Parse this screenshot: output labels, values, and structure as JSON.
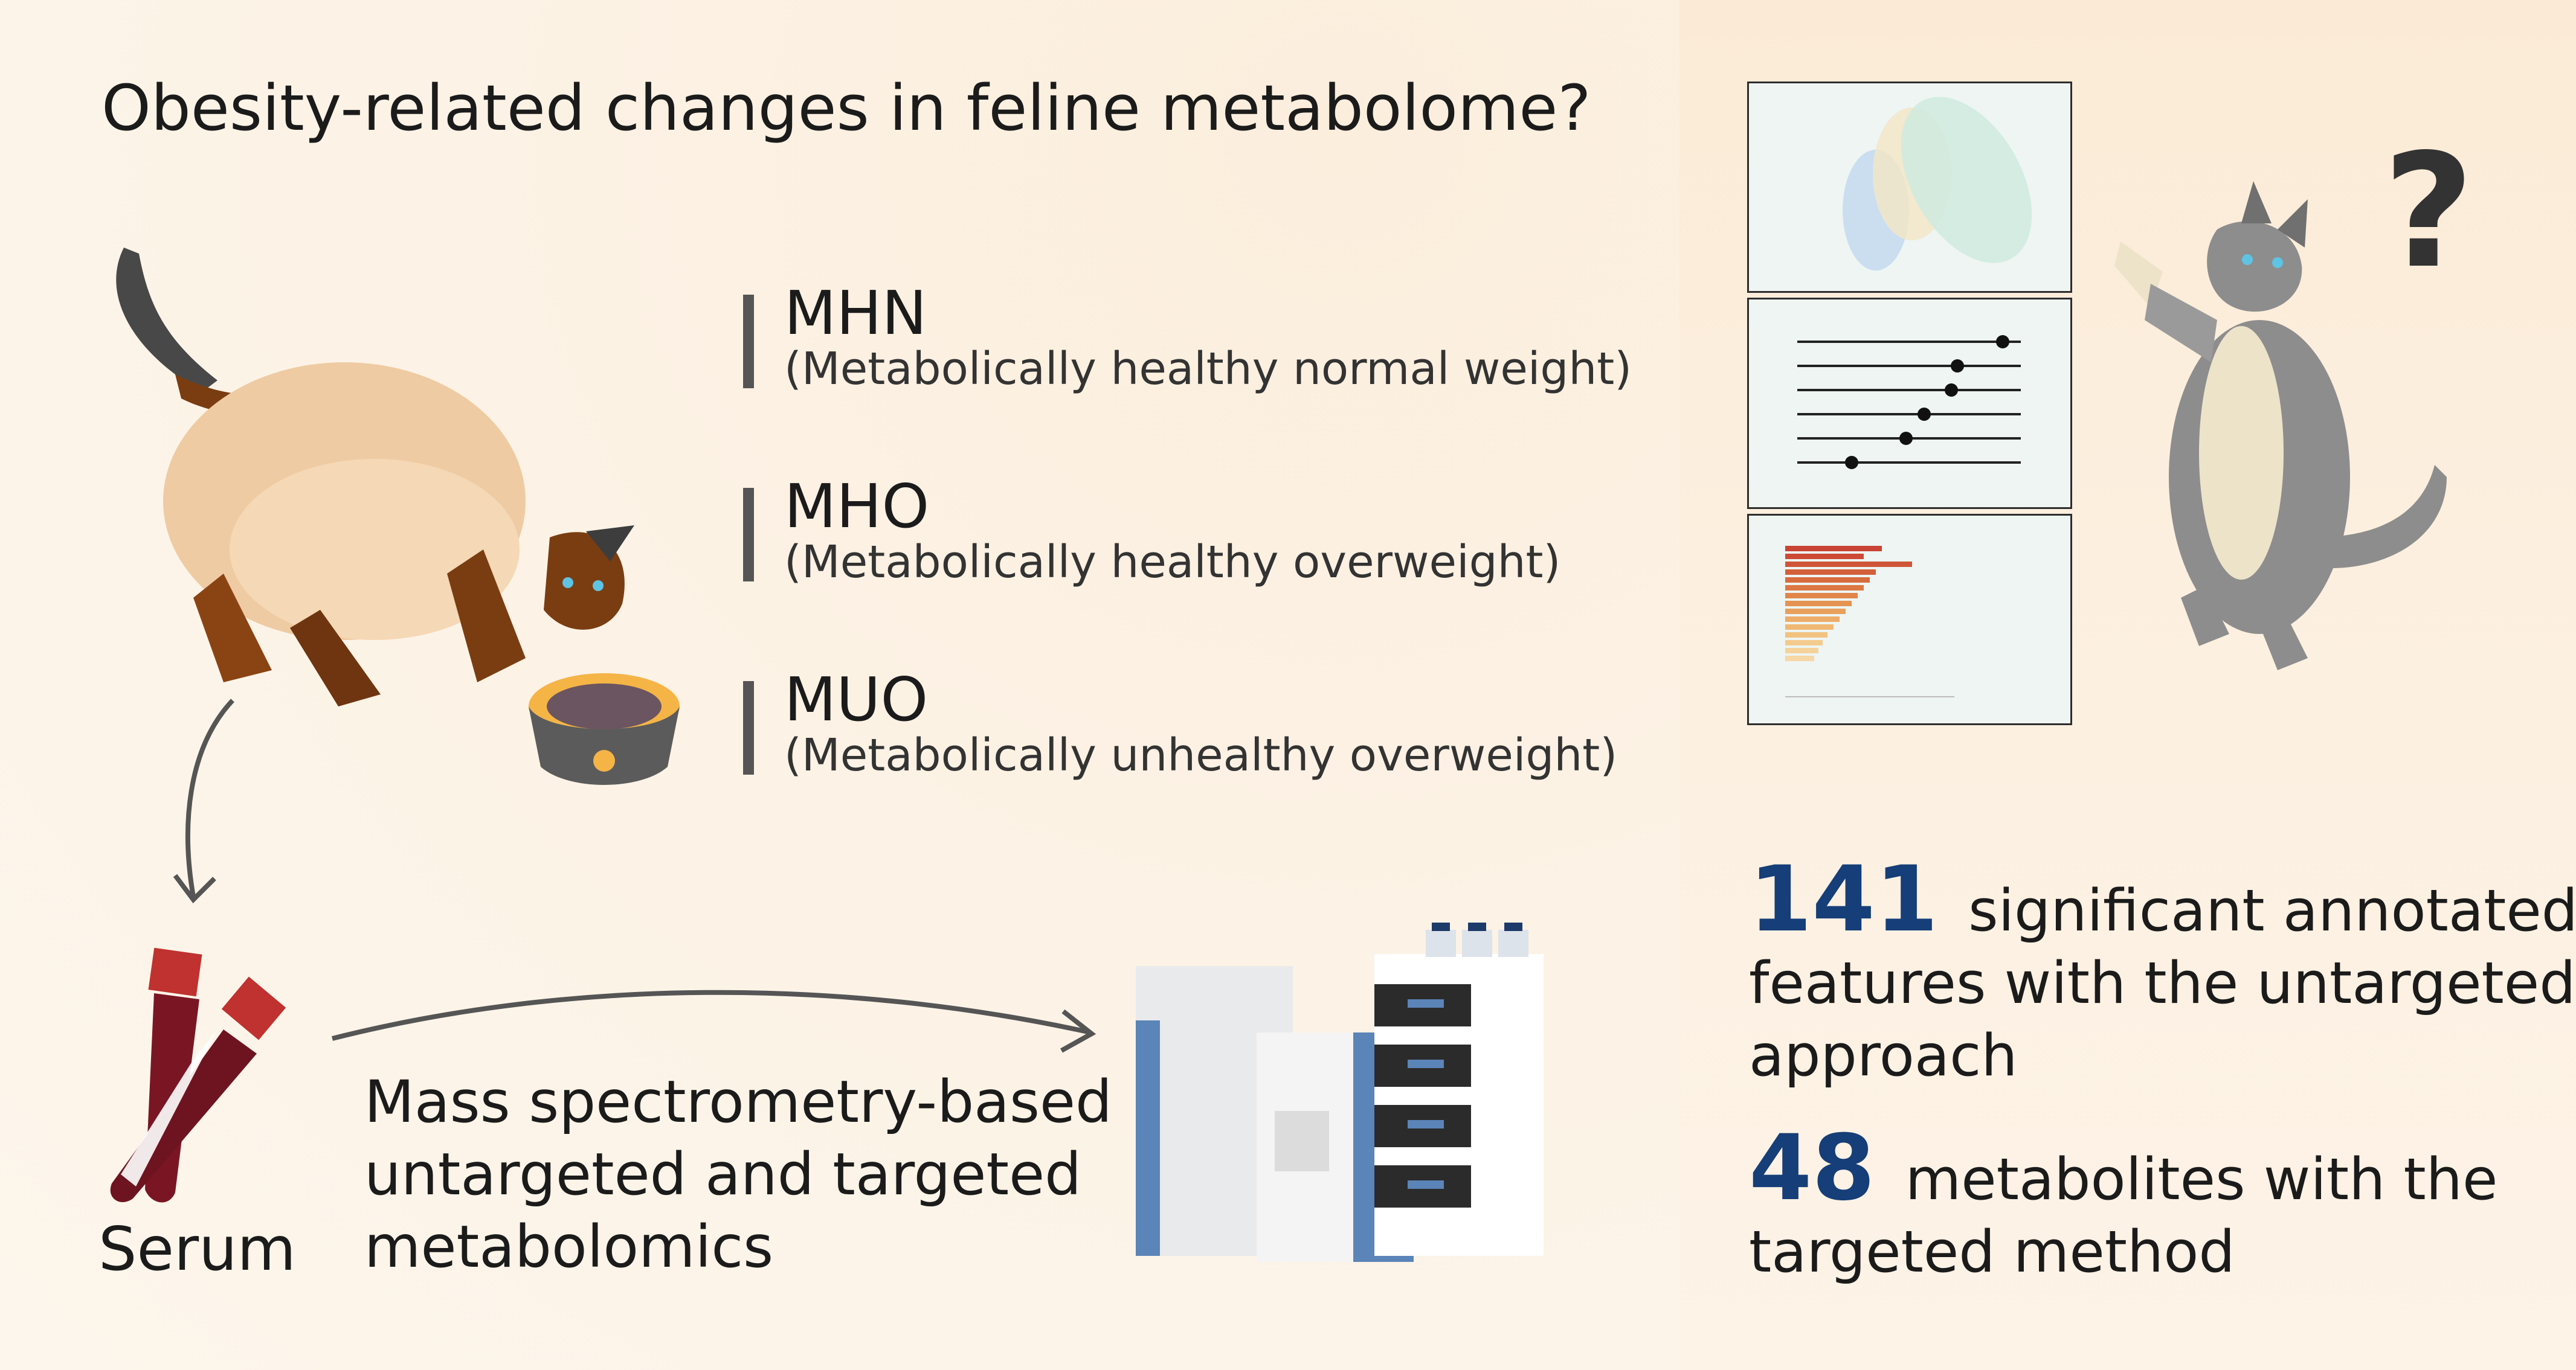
{
  "title": "Obesity-related changes in feline metabolome?",
  "groups": [
    {
      "code": "MHN",
      "description": "(Metabolically healthy normal weight)"
    },
    {
      "code": "MHO",
      "description": "(Metabolically healthy overweight)"
    },
    {
      "code": "MUO",
      "description": "(Metabolically unhealthy overweight)"
    }
  ],
  "sample_label": "Serum",
  "method_lines": [
    "Mass spectrometry-based",
    "untargeted and targeted",
    "metabolomics"
  ],
  "stats": [
    {
      "number": "141",
      "lines": [
        "significant annotated",
        "features with the untargeted",
        "approach"
      ]
    },
    {
      "number": "48",
      "lines": [
        "metabolites with the",
        "targeted method"
      ]
    }
  ],
  "question_mark": "?",
  "colors": {
    "accent_number": "#163e78",
    "plot_bg": "#eef5f3",
    "bars_gradient": [
      "#c94434",
      "#f6d7a6"
    ]
  }
}
